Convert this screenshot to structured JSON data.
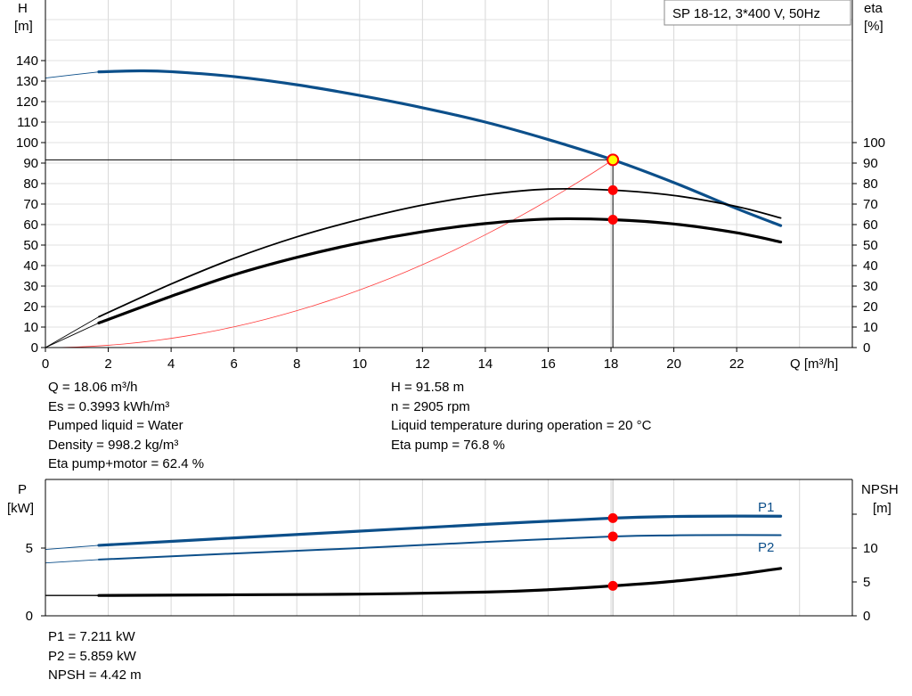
{
  "chart_data": [
    {
      "type": "line",
      "legend_box": "SP 18-12, 3*400 V, 50Hz",
      "xlabel": "Q [m³/h]",
      "ylabel_left": [
        "H",
        "[m]"
      ],
      "ylabel_right": [
        "eta",
        "[%]"
      ],
      "xlim": [
        0,
        25.8
      ],
      "ylim_left": [
        0,
        170
      ],
      "ylim_right": [
        0,
        170
      ],
      "x_ticks": [
        0,
        2,
        4,
        6,
        8,
        10,
        12,
        14,
        16,
        18,
        20,
        22
      ],
      "y_ticks_left": [
        0,
        10,
        20,
        30,
        40,
        50,
        60,
        70,
        80,
        90,
        100,
        110,
        120,
        130,
        140
      ],
      "y_ticks_right": [
        0,
        10,
        20,
        30,
        40,
        50,
        60,
        70,
        80,
        90,
        100
      ],
      "grid": true,
      "colors": {
        "head": "#0c4f8a",
        "eta": "#000000",
        "system": "#ff3b3b",
        "point": "#ff0000",
        "duty": "#ffff00"
      },
      "series": [
        {
          "key": "head",
          "axis": "left",
          "width": 3.2,
          "color": "#0c4f8a",
          "extrapolated_until": 1.7,
          "x": [
            0,
            1.7,
            3,
            4,
            6,
            8,
            10,
            12,
            14,
            16,
            18.06,
            20,
            22,
            23.4
          ],
          "y": [
            131.5,
            134.5,
            135,
            134.6,
            132.2,
            128.2,
            123,
            117,
            110,
            101.5,
            91.58,
            80.5,
            67.8,
            59.5
          ]
        },
        {
          "key": "eta_pump",
          "axis": "right",
          "width": 1.8,
          "color": "#000000",
          "extrapolated_until": 1.7,
          "x": [
            0,
            1.7,
            4,
            6,
            8,
            10,
            12,
            14,
            16,
            18.06,
            20,
            22,
            23.4
          ],
          "y": [
            0,
            15,
            31,
            43.5,
            54,
            62.5,
            69.5,
            74.5,
            77.3,
            76.8,
            74.2,
            68.8,
            63.2
          ]
        },
        {
          "key": "eta_pump_motor",
          "axis": "right",
          "width": 3.2,
          "color": "#000000",
          "extrapolated_until": 1.7,
          "x": [
            0,
            1.7,
            4,
            6,
            8,
            10,
            12,
            14,
            16,
            18.06,
            20,
            22,
            23.4
          ],
          "y": [
            0,
            12,
            25,
            35.5,
            44,
            51,
            56.5,
            60.5,
            62.7,
            62.4,
            60.3,
            56,
            51.5
          ]
        },
        {
          "key": "system",
          "axis": "left",
          "width": 0.8,
          "color": "#ff3b3b",
          "quadratic_through": [
            18.06,
            91.58
          ]
        }
      ],
      "duty_point": {
        "Q": 18.06,
        "H": 91.58,
        "eta_pump": 76.8,
        "eta_pump_motor": 62.4
      }
    },
    {
      "type": "line",
      "ylabel_left": [
        "P",
        "[kW]"
      ],
      "ylabel_right": [
        "NPSH",
        "[m]"
      ],
      "xlim": [
        0,
        25.8
      ],
      "ylim_left": [
        0,
        10
      ],
      "ylim_right": [
        0,
        20
      ],
      "y_ticks_left": [
        0,
        5
      ],
      "y_ticks_right": [
        0,
        5,
        10
      ],
      "series": [
        {
          "name": "P1",
          "axis": "left",
          "width": 3.2,
          "color": "#0c4f8a",
          "extrapolated_until": 1.7,
          "x": [
            0,
            1.7,
            6,
            10,
            14,
            18.06,
            20,
            22,
            23.4
          ],
          "y": [
            4.9,
            5.2,
            5.75,
            6.25,
            6.75,
            7.211,
            7.33,
            7.36,
            7.35
          ]
        },
        {
          "name": "P2",
          "axis": "left",
          "width": 2,
          "color": "#0c4f8a",
          "extrapolated_until": 1.7,
          "x": [
            0,
            1.7,
            6,
            10,
            14,
            18.06,
            20,
            22,
            23.4
          ],
          "y": [
            3.9,
            4.15,
            4.6,
            5.0,
            5.45,
            5.859,
            5.94,
            5.96,
            5.95
          ]
        },
        {
          "key": "npsh",
          "axis": "right",
          "width": 3.2,
          "color": "#000000",
          "flat_until": 1.7,
          "x": [
            0,
            1.7,
            6,
            10,
            14,
            16,
            18.06,
            20,
            22,
            23.4
          ],
          "y": [
            3.0,
            3.0,
            3.1,
            3.2,
            3.5,
            3.85,
            4.42,
            5.1,
            6.1,
            7.0
          ]
        }
      ],
      "duty_point": {
        "Q": 18.06,
        "P1": 7.211,
        "P2": 5.859,
        "NPSH": 4.42
      }
    }
  ],
  "readout_left": [
    "Q = 18.06 m³/h",
    "Es = 0.3993 kWh/m³",
    "Pumped liquid = Water",
    "Density = 998.2 kg/m³",
    "Eta pump+motor = 62.4 %"
  ],
  "readout_right": [
    "H = 91.58 m",
    "n = 2905 rpm",
    "Liquid temperature during operation = 20 °C",
    "Eta pump = 76.8 %"
  ],
  "readout_power": [
    "P1 = 7.211 kW",
    "P2 = 5.859 kW",
    "NPSH = 4.42 m"
  ]
}
